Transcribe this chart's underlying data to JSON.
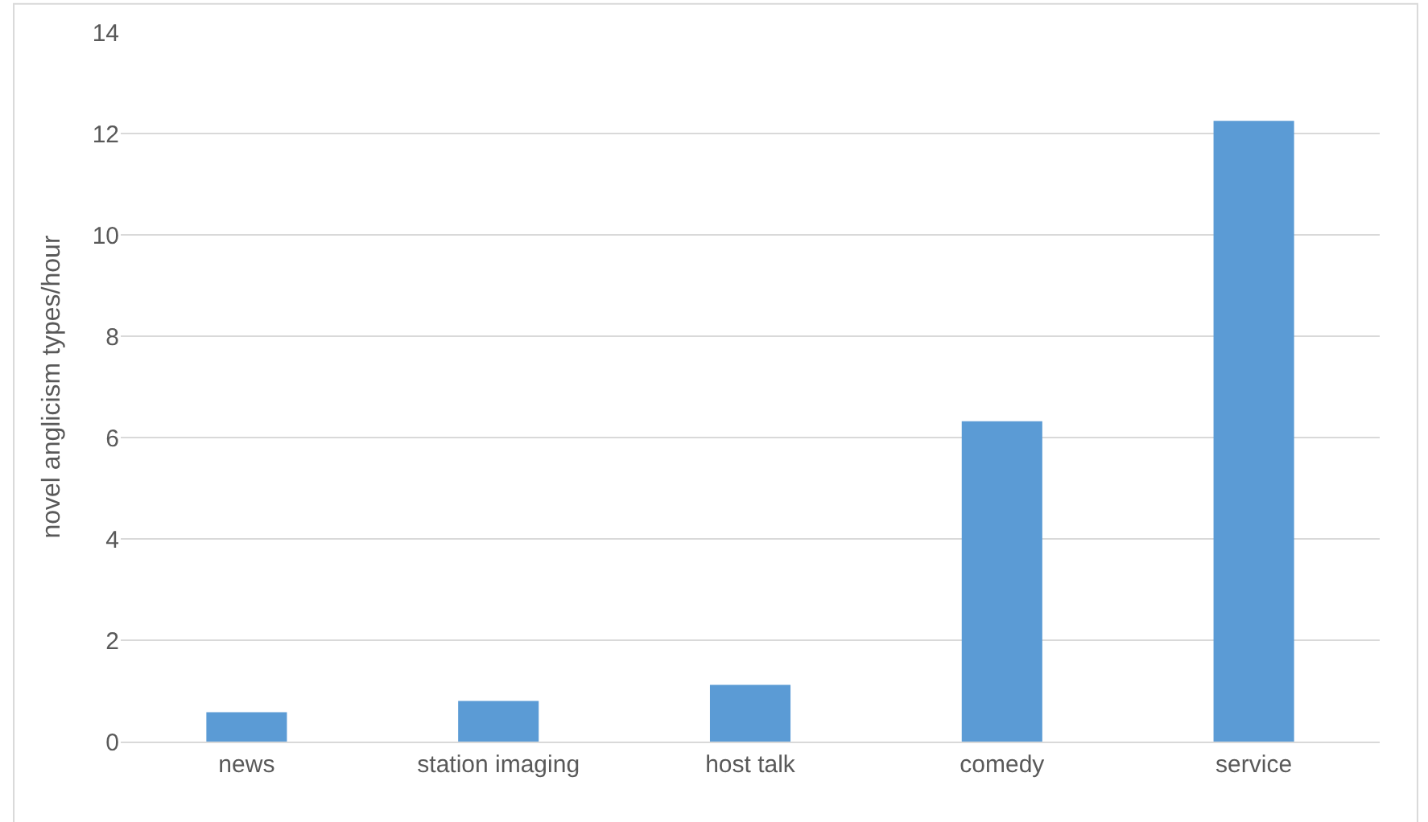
{
  "chart_data": {
    "type": "bar",
    "ylabel": "novel anglicism types/hour",
    "categories": [
      "news",
      "station imaging",
      "host talk",
      "comedy",
      "service"
    ],
    "values": [
      0.58,
      0.8,
      1.12,
      6.32,
      12.25
    ],
    "color": "#5b9bd5",
    "ylim": [
      0,
      14
    ],
    "yticks": [
      0,
      2,
      4,
      6,
      8,
      10,
      12,
      14
    ],
    "grid": "y",
    "legend": false
  }
}
